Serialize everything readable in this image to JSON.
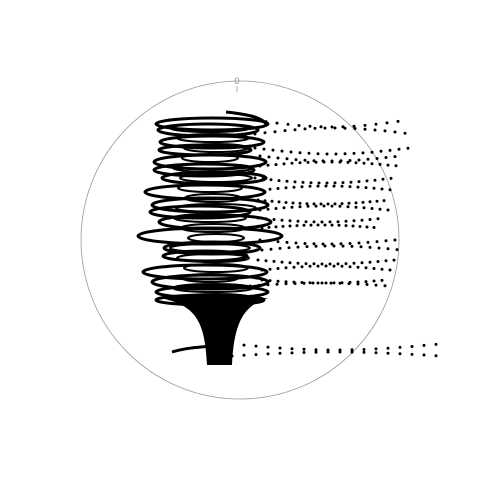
{
  "figure": {
    "top_tick_label": "0",
    "colors": {
      "background": "#ffffff",
      "frame": "#999999",
      "ink": "#000000"
    }
  }
}
